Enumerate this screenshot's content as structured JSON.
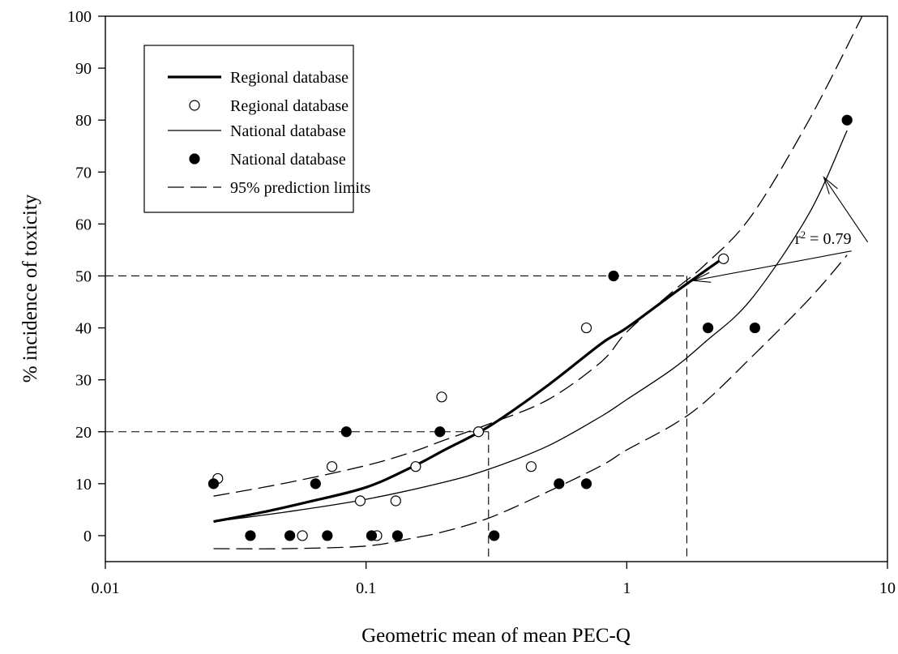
{
  "chart_data": {
    "type": "scatter",
    "xlabel": "Geometric mean of mean PEC-Q",
    "ylabel": "% incidence of toxicity",
    "x_scale": "log",
    "xlim": [
      0.01,
      10
    ],
    "ylim": [
      -5,
      100
    ],
    "x_ticks": [
      0.01,
      0.1,
      1,
      10
    ],
    "x_tick_labels": [
      "0.01",
      "0.1",
      "1",
      "10"
    ],
    "y_ticks": [
      0,
      10,
      20,
      30,
      40,
      50,
      60,
      70,
      80,
      90,
      100
    ],
    "y_tick_labels": [
      "0",
      "10",
      "20",
      "30",
      "40",
      "50",
      "60",
      "70",
      "80",
      "90",
      "100"
    ],
    "grid": false,
    "legend": {
      "placement": "top-left",
      "entries": [
        {
          "label": "Regional database",
          "style": "thick-line"
        },
        {
          "label": "Regional database",
          "style": "open-circle"
        },
        {
          "label": "National database",
          "style": "thin-line"
        },
        {
          "label": "National database",
          "style": "filled-circle"
        },
        {
          "label": "95% prediction limits",
          "style": "dashed-line"
        }
      ]
    },
    "series": [
      {
        "name": "Regional database",
        "kind": "points",
        "marker": "open-circle",
        "points": [
          [
            0.027,
            11
          ],
          [
            0.057,
            0
          ],
          [
            0.074,
            13.3
          ],
          [
            0.095,
            6.7
          ],
          [
            0.11,
            0
          ],
          [
            0.13,
            6.7
          ],
          [
            0.155,
            13.3
          ],
          [
            0.195,
            26.7
          ],
          [
            0.27,
            20
          ],
          [
            0.43,
            13.3
          ],
          [
            0.7,
            40
          ],
          [
            2.35,
            53.3
          ]
        ]
      },
      {
        "name": "National database",
        "kind": "points",
        "marker": "filled-circle",
        "points": [
          [
            0.026,
            10
          ],
          [
            0.036,
            0
          ],
          [
            0.051,
            0
          ],
          [
            0.064,
            10
          ],
          [
            0.071,
            0
          ],
          [
            0.084,
            20
          ],
          [
            0.105,
            0
          ],
          [
            0.132,
            0
          ],
          [
            0.192,
            20
          ],
          [
            0.31,
            0
          ],
          [
            0.55,
            10
          ],
          [
            0.7,
            10
          ],
          [
            0.89,
            50
          ],
          [
            2.05,
            40
          ],
          [
            3.1,
            40
          ],
          [
            7.0,
            80
          ]
        ]
      },
      {
        "name": "Regional database",
        "kind": "fit",
        "style": "thick-line",
        "points": [
          [
            0.026,
            2.7
          ],
          [
            0.04,
            4.5
          ],
          [
            0.06,
            6.5
          ],
          [
            0.1,
            9.3
          ],
          [
            0.15,
            13.2
          ],
          [
            0.2,
            16.5
          ],
          [
            0.3,
            21.2
          ],
          [
            0.5,
            29
          ],
          [
            0.8,
            37
          ],
          [
            1.0,
            40
          ],
          [
            1.5,
            46.5
          ],
          [
            2.0,
            51
          ],
          [
            2.4,
            53.8
          ]
        ]
      },
      {
        "name": "National database",
        "kind": "fit",
        "style": "thin-line",
        "points": [
          [
            0.026,
            2.7
          ],
          [
            0.05,
            4.6
          ],
          [
            0.1,
            7
          ],
          [
            0.2,
            10.3
          ],
          [
            0.3,
            12.9
          ],
          [
            0.5,
            17.3
          ],
          [
            0.8,
            23
          ],
          [
            1.0,
            26.2
          ],
          [
            1.5,
            32.1
          ],
          [
            2.0,
            37.3
          ],
          [
            3.0,
            45.5
          ],
          [
            5.0,
            62
          ],
          [
            7.0,
            78
          ]
        ]
      },
      {
        "name": "95% prediction limits",
        "kind": "fit",
        "style": "dashed-line",
        "points": [
          [
            0.026,
            7.6
          ],
          [
            0.05,
            10.2
          ],
          [
            0.1,
            13.5
          ],
          [
            0.15,
            16.1
          ],
          [
            0.2,
            18.4
          ],
          [
            0.3,
            21.6
          ],
          [
            0.5,
            26.2
          ],
          [
            0.8,
            33.5
          ],
          [
            1.0,
            39.2
          ],
          [
            1.5,
            47
          ],
          [
            2.0,
            52.2
          ],
          [
            3.0,
            61.5
          ],
          [
            5.0,
            80
          ],
          [
            8.0,
            100
          ]
        ]
      },
      {
        "name": "95% prediction limits",
        "kind": "fit",
        "style": "dashed-line",
        "points": [
          [
            0.026,
            -2.5
          ],
          [
            0.05,
            -2.5
          ],
          [
            0.1,
            -2
          ],
          [
            0.15,
            -0.5
          ],
          [
            0.2,
            0.8
          ],
          [
            0.3,
            3.5
          ],
          [
            0.5,
            8.5
          ],
          [
            0.8,
            13.5
          ],
          [
            1.0,
            16.5
          ],
          [
            1.5,
            21.3
          ],
          [
            2.0,
            25.8
          ],
          [
            3.0,
            34.3
          ],
          [
            5.0,
            45.5
          ],
          [
            7.0,
            54
          ]
        ]
      }
    ],
    "reference_lines": [
      {
        "from": [
          0.01,
          20
        ],
        "to": [
          0.295,
          20
        ]
      },
      {
        "from": [
          0.295,
          20
        ],
        "to": [
          0.295,
          -5
        ]
      },
      {
        "from": [
          0.01,
          50
        ],
        "to": [
          1.7,
          50
        ]
      },
      {
        "from": [
          1.7,
          50
        ],
        "to": [
          1.7,
          -5
        ]
      }
    ],
    "annotations": [
      {
        "text_base": "r",
        "text_sup": "2",
        "text_rest": " = 0.79",
        "point": [
          1.77,
          49
        ],
        "arrow_target_1": [
          1.8,
          49.1
        ],
        "arrow_target_2": [
          5.7,
          69
        ]
      }
    ]
  }
}
